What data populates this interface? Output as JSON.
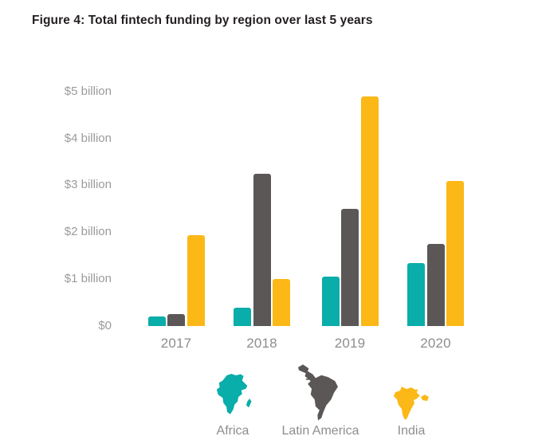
{
  "figure": {
    "title": "Figure 4: Total fintech funding by region over last 5 years"
  },
  "chart_data": {
    "type": "bar",
    "title": "Figure 4: Total fintech funding by region over last 5 years",
    "unit": "USD billions",
    "categories": [
      "2017",
      "2018",
      "2019",
      "2020"
    ],
    "series": [
      {
        "name": "Africa",
        "color": "#09ada9",
        "values": [
          0.2,
          0.4,
          1.05,
          1.35
        ]
      },
      {
        "name": "Latin America",
        "color": "#5b5757",
        "values": [
          0.25,
          3.25,
          2.5,
          1.75
        ]
      },
      {
        "name": "India",
        "color": "#fbb817",
        "values": [
          1.95,
          1.0,
          4.9,
          3.1
        ]
      }
    ],
    "yticks": [
      {
        "label": "$5 billion",
        "value": 5
      },
      {
        "label": "$4 billion",
        "value": 4
      },
      {
        "label": "$3 billion",
        "value": 3
      },
      {
        "label": "$2 billion",
        "value": 2
      },
      {
        "label": "$1 billion",
        "value": 1
      },
      {
        "label": "$0",
        "value": 0
      }
    ],
    "ylim": [
      0,
      5
    ],
    "grid": false,
    "axis_lines": false,
    "legend_position": "bottom"
  },
  "legend": {
    "items": [
      {
        "label": "Africa",
        "icon": "africa-map-icon",
        "color": "#09ada9"
      },
      {
        "label": "Latin America",
        "icon": "latin-america-map-icon",
        "color": "#5b5757"
      },
      {
        "label": "India",
        "icon": "india-map-icon",
        "color": "#fbb817"
      }
    ]
  },
  "colors": {
    "background": "#ffffff",
    "title_text": "#231f20",
    "axis_text": "#9b9b9b",
    "category_text": "#8d8d8d",
    "legend_text": "#8d8d8d"
  }
}
